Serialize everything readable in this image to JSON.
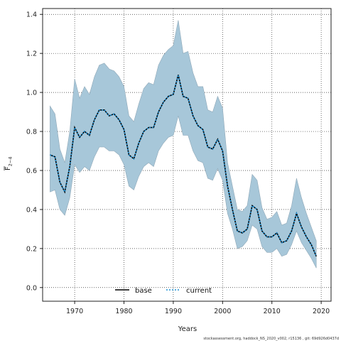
{
  "chart_data": {
    "type": "line",
    "xlabel": "Years",
    "ylabel": "F̅₂₋₄",
    "ylabel_main": "F",
    "ylabel_sub": "2−4",
    "xlim": [
      1963.5,
      2022
    ],
    "ylim": [
      -0.07,
      1.43
    ],
    "xticks": [
      1970,
      1980,
      1990,
      2000,
      2010,
      2020
    ],
    "yticks": [
      0.0,
      0.2,
      0.4,
      0.6,
      0.8,
      1.0,
      1.2,
      1.4
    ],
    "ytick_labels": [
      "0.0",
      "0.2",
      "0.4",
      "0.6",
      "0.8",
      "1.0",
      "1.2",
      "1.4"
    ],
    "grid": true,
    "legend_position": "bottom-center",
    "x": [
      1965,
      1966,
      1967,
      1968,
      1969,
      1970,
      1971,
      1972,
      1973,
      1974,
      1975,
      1976,
      1977,
      1978,
      1979,
      1980,
      1981,
      1982,
      1983,
      1984,
      1985,
      1986,
      1987,
      1988,
      1989,
      1990,
      1991,
      1992,
      1993,
      1994,
      1995,
      1996,
      1997,
      1998,
      1999,
      2000,
      2001,
      2002,
      2003,
      2004,
      2005,
      2006,
      2007,
      2008,
      2009,
      2010,
      2011,
      2012,
      2013,
      2014,
      2015,
      2016,
      2017,
      2018,
      2019
    ],
    "band": {
      "upper": [
        0.93,
        0.89,
        0.71,
        0.64,
        0.8,
        1.07,
        0.97,
        1.03,
        0.99,
        1.08,
        1.14,
        1.15,
        1.12,
        1.11,
        1.08,
        1.03,
        0.88,
        0.85,
        0.94,
        1.02,
        1.05,
        1.04,
        1.14,
        1.19,
        1.22,
        1.24,
        1.37,
        1.2,
        1.21,
        1.1,
        1.03,
        1.03,
        0.91,
        0.9,
        0.98,
        0.92,
        0.64,
        0.52,
        0.4,
        0.39,
        0.42,
        0.58,
        0.55,
        0.41,
        0.35,
        0.36,
        0.39,
        0.32,
        0.33,
        0.42,
        0.56,
        0.46,
        0.38,
        0.31,
        0.24
      ],
      "lower": [
        0.49,
        0.5,
        0.4,
        0.37,
        0.46,
        0.63,
        0.59,
        0.62,
        0.6,
        0.67,
        0.72,
        0.72,
        0.7,
        0.7,
        0.68,
        0.63,
        0.52,
        0.5,
        0.57,
        0.62,
        0.64,
        0.62,
        0.7,
        0.74,
        0.77,
        0.78,
        0.88,
        0.78,
        0.78,
        0.7,
        0.65,
        0.64,
        0.56,
        0.55,
        0.61,
        0.55,
        0.38,
        0.3,
        0.2,
        0.21,
        0.24,
        0.32,
        0.3,
        0.21,
        0.18,
        0.18,
        0.2,
        0.16,
        0.17,
        0.22,
        0.29,
        0.23,
        0.19,
        0.15,
        0.1
      ]
    },
    "series": [
      {
        "name": "base",
        "color": "#000000",
        "dash": "solid",
        "values": [
          0.68,
          0.67,
          0.54,
          0.49,
          0.62,
          0.82,
          0.77,
          0.8,
          0.78,
          0.86,
          0.91,
          0.91,
          0.88,
          0.89,
          0.86,
          0.81,
          0.68,
          0.66,
          0.74,
          0.8,
          0.82,
          0.82,
          0.9,
          0.95,
          0.98,
          0.99,
          1.09,
          0.98,
          0.97,
          0.88,
          0.83,
          0.81,
          0.72,
          0.71,
          0.76,
          0.7,
          0.52,
          0.4,
          0.29,
          0.28,
          0.3,
          0.42,
          0.4,
          0.29,
          0.26,
          0.26,
          0.28,
          0.23,
          0.24,
          0.29,
          0.38,
          0.31,
          0.26,
          0.22,
          0.16
        ]
      },
      {
        "name": "current",
        "color": "#1e90d4",
        "dash": "dotted",
        "values": [
          0.68,
          0.67,
          0.54,
          0.49,
          0.62,
          0.82,
          0.77,
          0.8,
          0.78,
          0.86,
          0.91,
          0.91,
          0.88,
          0.89,
          0.86,
          0.81,
          0.68,
          0.66,
          0.74,
          0.8,
          0.82,
          0.82,
          0.9,
          0.95,
          0.98,
          0.99,
          1.09,
          0.98,
          0.97,
          0.88,
          0.83,
          0.81,
          0.72,
          0.71,
          0.76,
          0.7,
          0.52,
          0.4,
          0.29,
          0.28,
          0.3,
          0.42,
          0.4,
          0.29,
          0.26,
          0.26,
          0.28,
          0.23,
          0.24,
          0.29,
          0.38,
          0.31,
          0.26,
          0.22,
          0.16
        ]
      }
    ],
    "colors": {
      "band_fill": "#a7c7d9",
      "band_edge": "#8fa8b8",
      "grid": "#333333"
    }
  },
  "footer": "stockassessment.org, haddock_NS_2020_v002, r15136 , git: 69d926d0437d"
}
